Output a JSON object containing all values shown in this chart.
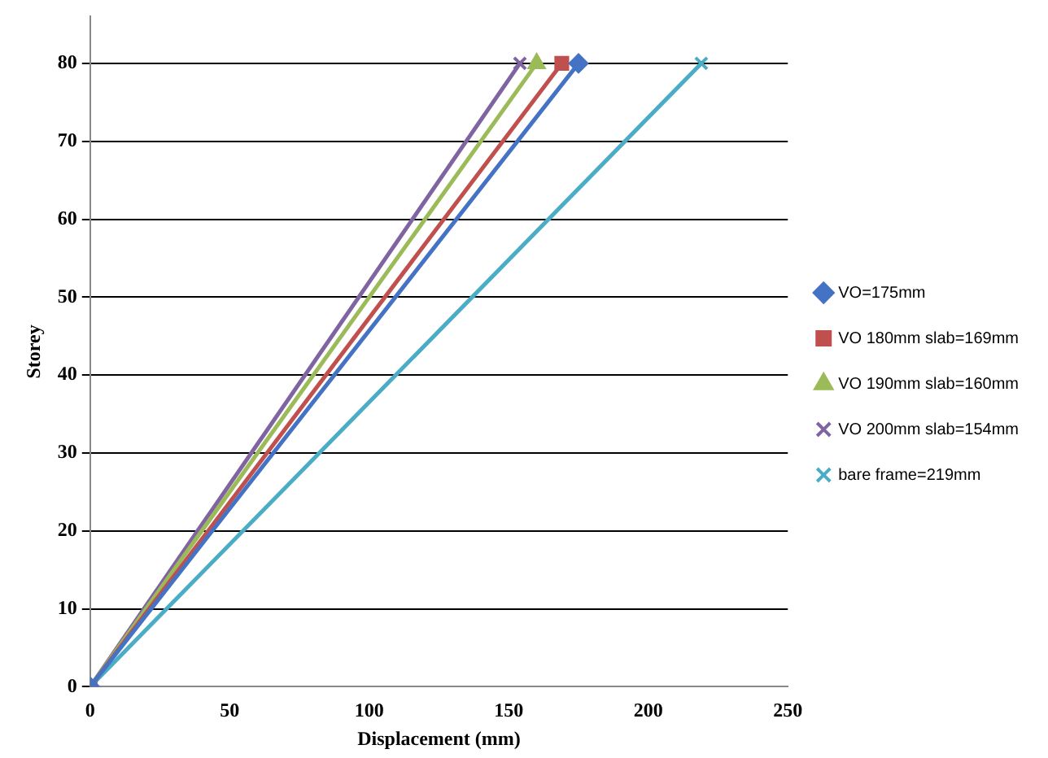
{
  "chart_data": {
    "type": "line",
    "xlabel": "Displacement (mm)",
    "ylabel": "Storey",
    "xlim": [
      0,
      250
    ],
    "xticks": [
      0,
      50,
      100,
      150,
      200,
      250
    ],
    "ylim": [
      0,
      86
    ],
    "yticks": [
      0,
      10,
      20,
      30,
      40,
      50,
      60,
      70,
      80
    ],
    "grid": "y",
    "legend": "right",
    "line_style": "solid",
    "series": [
      {
        "name": "VO=175mm",
        "color": "#4472c4",
        "marker": "diamond",
        "x": [
          0,
          175
        ],
        "values": [
          0,
          80
        ]
      },
      {
        "name": "VO 180mm slab=169mm",
        "color": "#c0504d",
        "marker": "square",
        "x": [
          0,
          169
        ],
        "values": [
          0,
          80
        ]
      },
      {
        "name": "VO 190mm slab=160mm",
        "color": "#9bbb59",
        "marker": "triangle",
        "x": [
          0,
          160
        ],
        "values": [
          0,
          80
        ]
      },
      {
        "name": "VO 200mm slab=154mm",
        "color": "#8064a2",
        "marker": "cross",
        "x": [
          0,
          154
        ],
        "values": [
          0,
          80
        ]
      },
      {
        "name": "bare frame=219mm",
        "color": "#4bacc6",
        "marker": "cross",
        "x": [
          0,
          219
        ],
        "values": [
          0,
          80
        ]
      }
    ]
  }
}
